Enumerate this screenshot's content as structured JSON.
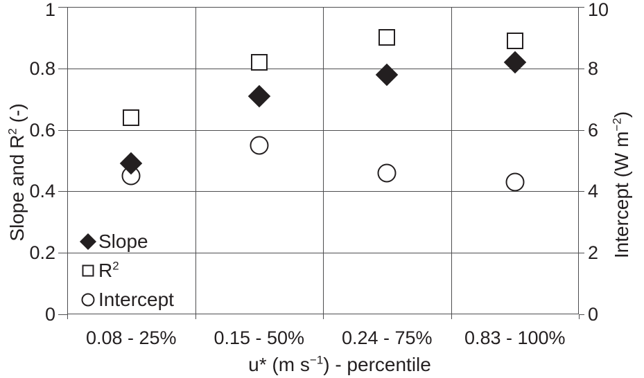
{
  "chart_data": {
    "type": "scatter",
    "title": "",
    "categories": [
      "0.08 - 25%",
      "0.15 - 50%",
      "0.24 - 75%",
      "0.83 - 100%"
    ],
    "series": [
      {
        "id": "slope",
        "label": {
          "pre": "Slope",
          "sup": ""
        },
        "marker": "diamond-filled",
        "axis": "left",
        "values": [
          0.49,
          0.71,
          0.78,
          0.82
        ]
      },
      {
        "id": "r2",
        "label": {
          "pre": "R",
          "sup": "2"
        },
        "marker": "square-open",
        "axis": "left",
        "values": [
          0.64,
          0.82,
          0.9,
          0.89
        ]
      },
      {
        "id": "intercept",
        "label": {
          "pre": "Intercept",
          "sup": ""
        },
        "marker": "circle-open",
        "axis": "right",
        "values": [
          4.5,
          5.5,
          4.6,
          4.3
        ]
      }
    ],
    "left_axis": {
      "title": {
        "pre": "Slope and R",
        "sup": "2",
        "post": " (-)"
      },
      "min": 0,
      "max": 1,
      "ticks": [
        "1",
        "0.8",
        "0.6",
        "0.4",
        "0.2",
        "0"
      ]
    },
    "right_axis": {
      "title": {
        "pre": "Intercept (W m",
        "sup": "−2",
        "post": ")"
      },
      "min": 0,
      "max": 10,
      "ticks": [
        "10",
        "8",
        "6",
        "4",
        "2",
        "0"
      ]
    },
    "x_axis": {
      "title": {
        "pre": "u* (m s",
        "sup": "−1",
        "post": ") - percentile"
      }
    },
    "legend": {
      "position": "inside-bottom-left"
    },
    "grid": true,
    "colors": {
      "marker": "#231f20",
      "line": "#4d4d4f",
      "text": "#231f20",
      "background": "#ffffff"
    }
  }
}
